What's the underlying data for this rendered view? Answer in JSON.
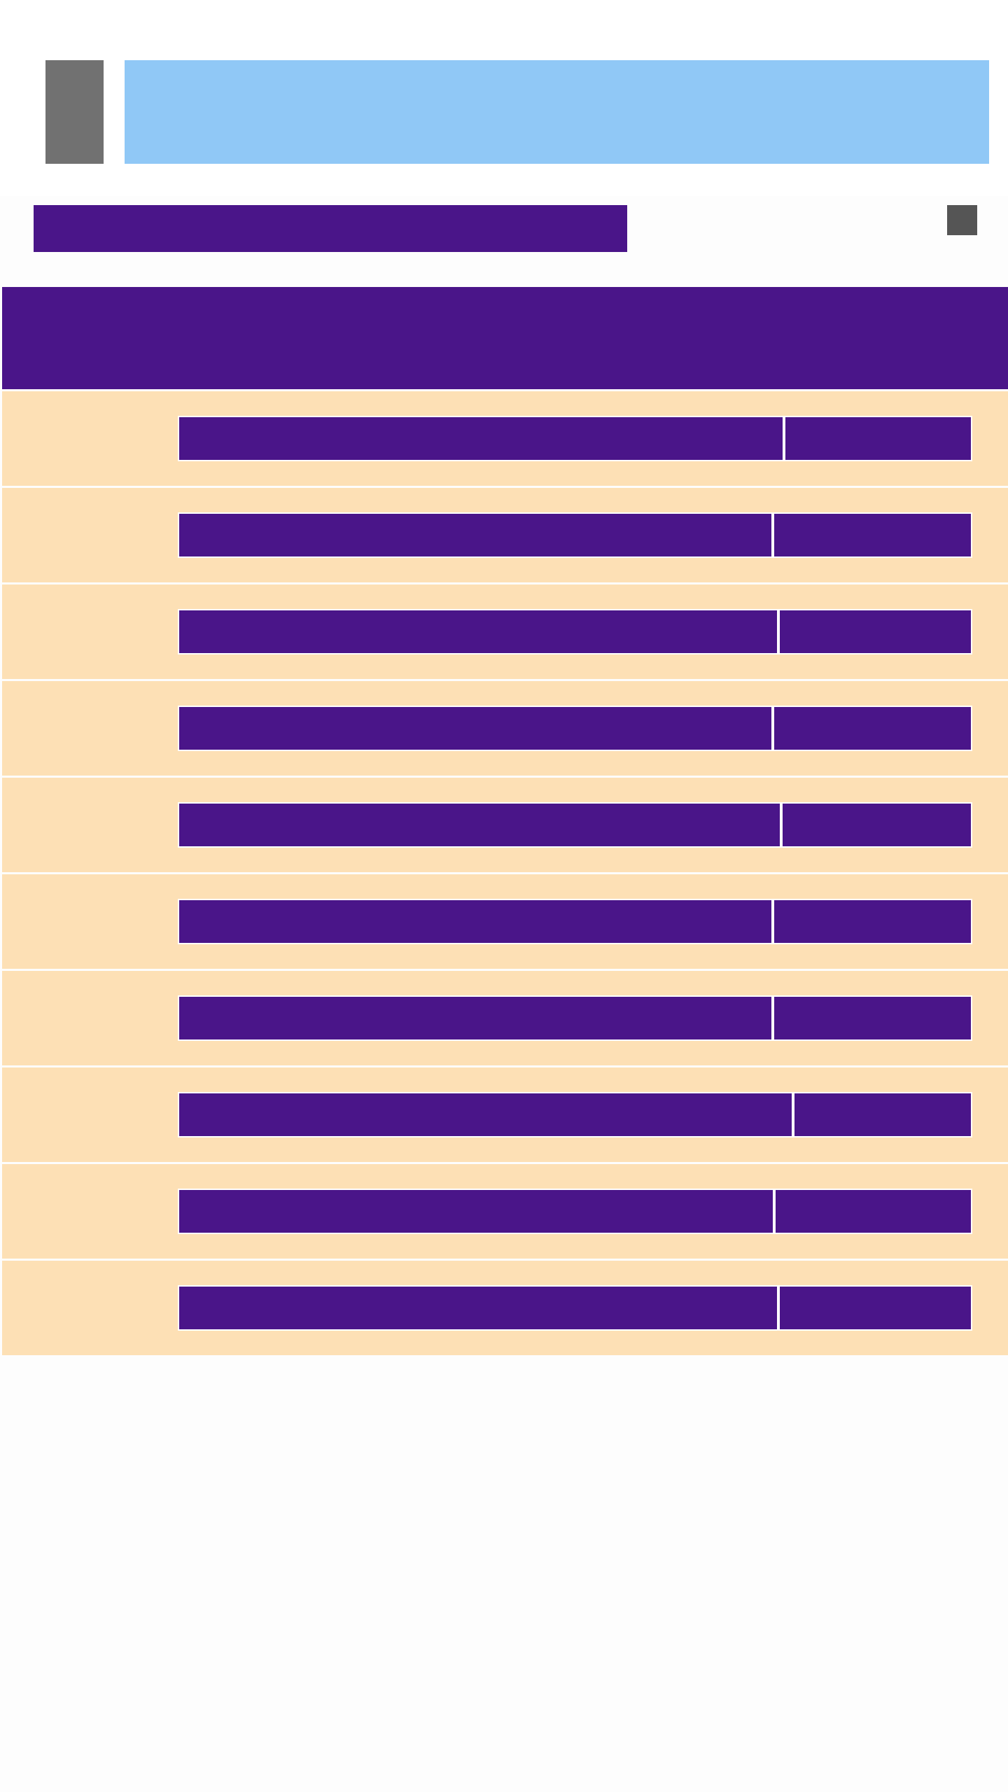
{
  "colors": {
    "primary": "#4a1589",
    "accent_banner": "#90c8f6",
    "row_background": "#fde0b5",
    "menu_block": "#717171",
    "action_square": "#555555"
  },
  "header": {
    "menu_label": "",
    "banner_text": "",
    "title": "",
    "action_label": ""
  },
  "table": {
    "header_text": "",
    "rows": [
      {
        "primary": "",
        "secondary": ""
      },
      {
        "primary": "",
        "secondary": ""
      },
      {
        "primary": "",
        "secondary": ""
      },
      {
        "primary": "",
        "secondary": ""
      },
      {
        "primary": "",
        "secondary": ""
      },
      {
        "primary": "",
        "secondary": ""
      },
      {
        "primary": "",
        "secondary": ""
      },
      {
        "primary": "",
        "secondary": ""
      },
      {
        "primary": "",
        "secondary": ""
      },
      {
        "primary": "",
        "secondary": ""
      }
    ]
  }
}
